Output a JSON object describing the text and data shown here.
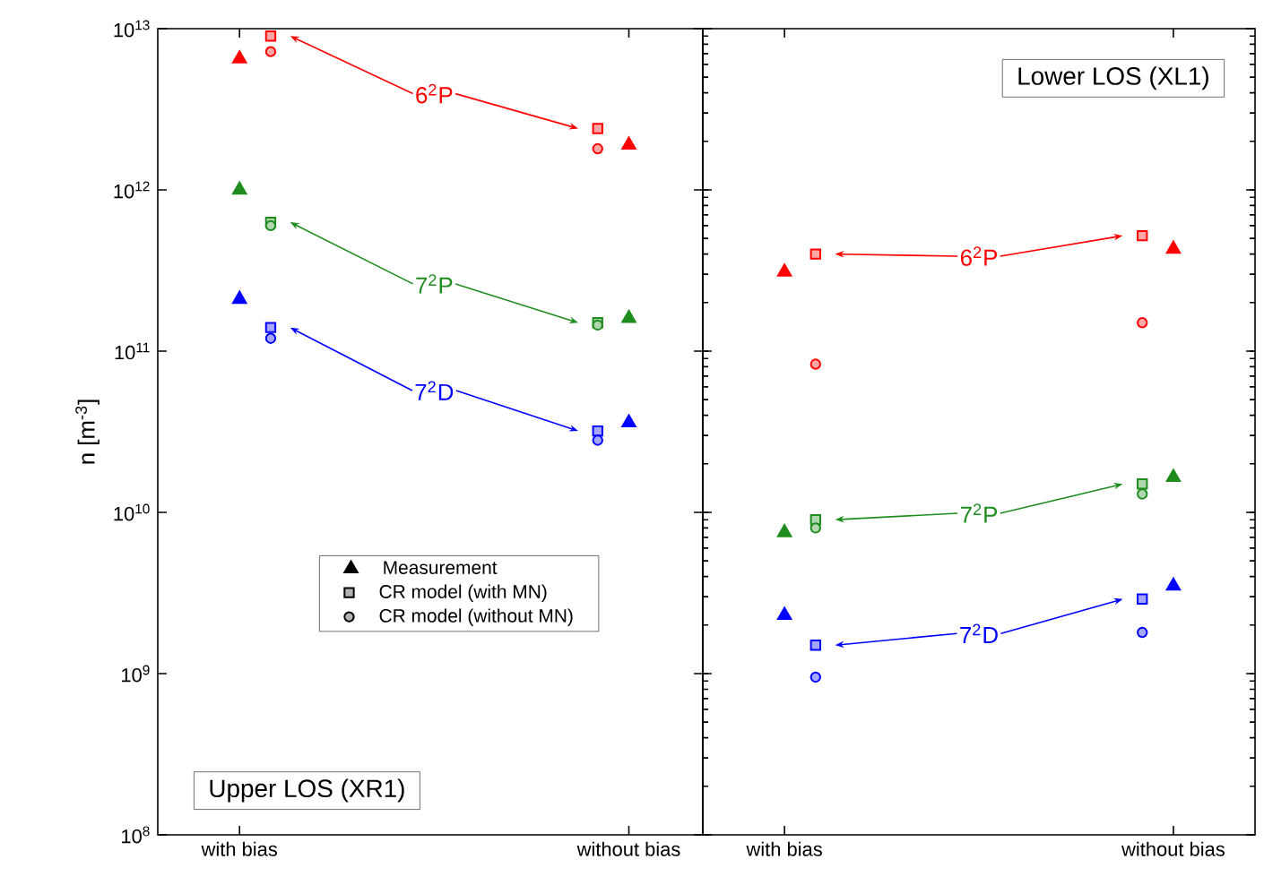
{
  "chart_data": [
    {
      "type": "scatter",
      "categories": [
        "with bias",
        "without bias"
      ],
      "ylabel": "n [m$^{-3}$]",
      "log": "y",
      "ylim": [
        100000000.0,
        10000000000000.0
      ],
      "yticks": [
        {
          "value": 100000000.0,
          "label": "10$^{8}$"
        },
        {
          "value": 1000000000.0,
          "label": "10$^{9}$"
        },
        {
          "value": 10000000000.0,
          "label": "10$^{10}$"
        },
        {
          "value": 100000000000.0,
          "label": "10$^{11}$"
        },
        {
          "value": 1000000000000.0,
          "label": "10$^{12}$"
        },
        {
          "value": 10000000000000.0,
          "label": "10$^{13}$"
        }
      ],
      "series": [
        {
          "color": "#ff0000",
          "marker": "triangle",
          "values": [
            6500000000000.0,
            1900000000000.0
          ]
        },
        {
          "color": "#ff0000",
          "marker": "square",
          "values": [
            9000000000000.0,
            2400000000000.0
          ]
        },
        {
          "color": "#ff0000",
          "marker": "circle",
          "values": [
            7200000000000.0,
            1800000000000.0
          ]
        },
        {
          "color": "#1e8c1e",
          "marker": "triangle",
          "values": [
            1000000000000.0,
            160000000000.0
          ]
        },
        {
          "color": "#1e8c1e",
          "marker": "square",
          "values": [
            630000000000.0,
            150000000000.0
          ]
        },
        {
          "color": "#1e8c1e",
          "marker": "circle",
          "values": [
            600000000000.0,
            145000000000.0
          ]
        },
        {
          "color": "#0000ff",
          "marker": "triangle",
          "values": [
            210000000000.0,
            36000000000.0
          ]
        },
        {
          "color": "#0000ff",
          "marker": "square",
          "values": [
            140000000000.0,
            32000000000.0
          ]
        },
        {
          "color": "#0000ff",
          "marker": "circle",
          "values": [
            120000000000.0,
            28000000000.0
          ]
        }
      ],
      "annotations": [
        "6$^{2}$P",
        "7$^{2}$P",
        "7$^{2}$D",
        "Upper LOS (XR1)",
        "Measurement",
        "CR model (with MN)",
        "CR model (without MN)"
      ]
    },
    {
      "type": "scatter",
      "categories": [
        "with bias",
        "without bias"
      ],
      "log": "y",
      "ylim": [
        100000000.0,
        10000000000000.0
      ],
      "tick_labels": "x",
      "series": [
        {
          "color": "#ff0000",
          "marker": "triangle",
          "values": [
            310000000000.0,
            430000000000.0
          ]
        },
        {
          "color": "#ff0000",
          "marker": "square",
          "values": [
            400000000000.0,
            520000000000.0
          ]
        },
        {
          "color": "#ff0000",
          "marker": "circle",
          "values": [
            83000000000.0,
            150000000000.0
          ]
        },
        {
          "color": "#1e8c1e",
          "marker": "triangle",
          "values": [
            7500000000.0,
            16500000000.0
          ]
        },
        {
          "color": "#1e8c1e",
          "marker": "square",
          "values": [
            9000000000.0,
            15000000000.0
          ]
        },
        {
          "color": "#1e8c1e",
          "marker": "circle",
          "values": [
            8000000000.0,
            13000000000.0
          ]
        },
        {
          "color": "#0000ff",
          "marker": "triangle",
          "values": [
            2300000000.0,
            3500000000.0
          ]
        },
        {
          "color": "#0000ff",
          "marker": "square",
          "values": [
            1500000000.0,
            2900000000.0
          ]
        },
        {
          "color": "#0000ff",
          "marker": "circle",
          "values": [
            950000000.0,
            1800000000.0
          ]
        }
      ],
      "annotations": [
        "6$^{2}$P",
        "7$^{2}$P",
        "7$^{2}$D",
        "Lower LOS (XL1)"
      ]
    }
  ]
}
